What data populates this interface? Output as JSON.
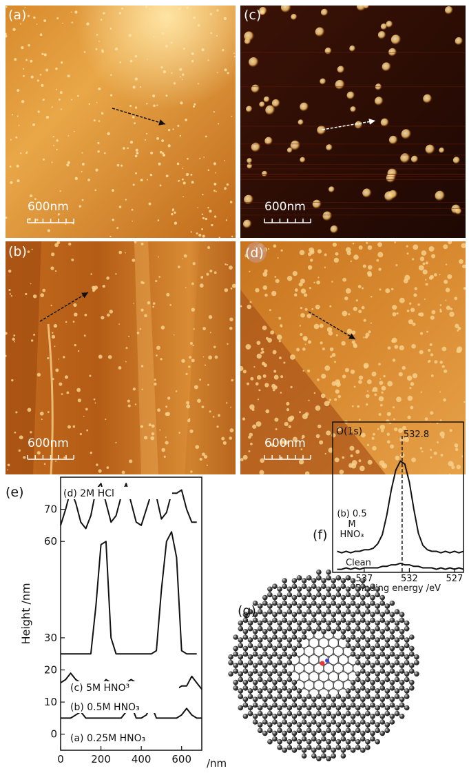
{
  "panels": [
    {
      "label": "(a)",
      "scale_bar": "600nm"
    },
    {
      "label": "(c)",
      "scale_bar": "600nm"
    },
    {
      "label": "(b)",
      "scale_bar": "600nm"
    },
    {
      "label": "(d)",
      "scale_bar": "600nm"
    }
  ],
  "chart_data": [
    {
      "type": "line",
      "panel_label": "(e)",
      "y_label": "Height /nm",
      "x_label": "/nm",
      "x": [
        0,
        25,
        50,
        75,
        100,
        125,
        150,
        175,
        200,
        225,
        250,
        275,
        300,
        325,
        350,
        375,
        400,
        425,
        450,
        475,
        500,
        525,
        550,
        575,
        600,
        625,
        650,
        675,
        700
      ],
      "xlim": [
        0,
        700
      ],
      "xticks": [
        0,
        200,
        400,
        600
      ],
      "ylim": [
        -5,
        80
      ],
      "yticks": [
        0,
        10,
        20,
        30,
        60,
        70
      ],
      "series": [
        {
          "name": "(d) 2M HCl",
          "color": "#111111",
          "values": [
            65,
            70,
            76,
            72,
            66,
            64,
            68,
            76,
            78,
            72,
            66,
            68,
            74,
            78,
            72,
            66,
            65,
            70,
            75,
            74,
            67,
            69,
            75,
            75,
            76,
            70,
            66,
            66,
            null
          ]
        },
        {
          "name": "(c) 5M HNO³",
          "color": "#111111",
          "values": [
            25,
            25,
            25,
            25,
            25,
            25,
            25,
            40,
            59,
            60,
            30,
            25,
            25,
            25,
            25,
            25,
            25,
            25,
            25,
            26,
            45,
            60,
            63,
            55,
            26,
            25,
            25,
            25,
            null
          ]
        },
        {
          "name": "(b) 0.5M HNO₃",
          "color": "#111111",
          "values": [
            16,
            17,
            19,
            17,
            16,
            15,
            16,
            16,
            15,
            17,
            16,
            16,
            15,
            16,
            17,
            16,
            15,
            16,
            15,
            15,
            15,
            15,
            15,
            14,
            15,
            15,
            18,
            16,
            14
          ]
        },
        {
          "name": "(a) 0.25M HNO₃",
          "color": "#111111",
          "values": [
            5,
            5,
            5,
            6,
            7,
            5,
            5,
            5,
            5,
            5,
            5,
            5,
            5,
            7,
            9,
            5,
            5,
            6,
            9,
            5,
            5,
            5,
            5,
            5,
            6,
            8,
            6,
            5,
            5
          ]
        }
      ]
    },
    {
      "type": "line",
      "panel_label": "(f)",
      "title": "O(1s)",
      "x_label": "Binding energy /eV",
      "x": [
        540,
        539.5,
        539,
        538.5,
        538,
        537.5,
        537,
        536.5,
        536,
        535.5,
        535,
        534.5,
        534,
        533.5,
        533,
        532.5,
        532,
        531.5,
        531,
        530.5,
        530,
        529.5,
        529,
        528.5,
        528,
        527.5,
        527,
        526.5,
        526
      ],
      "xlim": [
        540.5,
        526
      ],
      "xticks": [
        537,
        532,
        527
      ],
      "ylim": [
        0,
        100
      ],
      "peak": 532.8,
      "series": [
        {
          "name": "(b) 0.5 M HNO₃",
          "color": "#111111",
          "values": [
            14,
            13,
            14,
            13,
            14,
            14,
            15,
            15,
            16,
            19,
            25,
            38,
            55,
            68,
            74,
            72,
            60,
            42,
            26,
            18,
            15,
            14,
            14,
            13,
            14,
            13,
            14,
            13,
            14
          ]
        },
        {
          "name": "Clean",
          "color": "#111111",
          "values": [
            2,
            2,
            3,
            2,
            3,
            2,
            3,
            3,
            3,
            3,
            4,
            4,
            5,
            5,
            6,
            5,
            5,
            4,
            4,
            3,
            3,
            3,
            2,
            3,
            2,
            3,
            2,
            3,
            2
          ]
        }
      ]
    }
  ],
  "model": {
    "label": "(g)"
  }
}
